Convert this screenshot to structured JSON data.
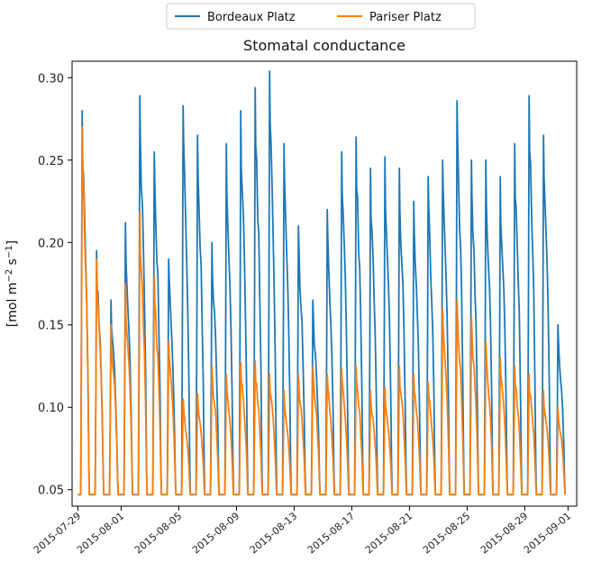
{
  "chart_data": {
    "type": "line",
    "title": "Stomatal conductance",
    "ylabel": "[mol m",
    "ylabel_sup1": "−2",
    "ylabel_mid": " s",
    "ylabel_sup2": "−1",
    "ylabel_end": "]",
    "ylim": [
      0.04,
      0.31
    ],
    "yticks": [
      "0.05",
      "0.10",
      "0.15",
      "0.20",
      "0.25",
      "0.30"
    ],
    "ytick_values": [
      0.05,
      0.1,
      0.15,
      0.2,
      0.25,
      0.3
    ],
    "x_start": "2015-07-29",
    "xticks": [
      "2015-07-29",
      "2015-08-01",
      "2015-08-05",
      "2015-08-09",
      "2015-08-13",
      "2015-08-17",
      "2015-08-21",
      "2015-08-25",
      "2015-08-29",
      "2015-09-01"
    ],
    "xtick_days": [
      0,
      3,
      7,
      11,
      15,
      19,
      23,
      27,
      31,
      34
    ],
    "xlim_days": [
      -0.4,
      34.6
    ],
    "legend_position": "top-center",
    "baseline": 0.047,
    "series": [
      {
        "name": "Bordeaux Platz",
        "color": "#1f77b4",
        "daily_peaks": [
          0.28,
          0.195,
          0.165,
          0.212,
          0.289,
          0.255,
          0.19,
          0.283,
          0.265,
          0.2,
          0.26,
          0.28,
          0.294,
          0.304,
          0.26,
          0.21,
          0.165,
          0.22,
          0.255,
          0.264,
          0.245,
          0.252,
          0.245,
          0.225,
          0.24,
          0.25,
          0.286,
          0.25,
          0.25,
          0.24,
          0.26,
          0.289,
          0.265,
          0.15
        ],
        "daily_troughs": [
          0.047,
          0.047,
          0.047,
          0.047,
          0.047,
          0.047,
          0.047,
          0.047,
          0.047,
          0.047,
          0.047,
          0.047,
          0.047,
          0.047,
          0.047,
          0.047,
          0.047,
          0.047,
          0.047,
          0.047,
          0.047,
          0.047,
          0.047,
          0.047,
          0.047,
          0.047,
          0.047,
          0.047,
          0.047,
          0.047,
          0.047,
          0.047,
          0.047,
          0.047
        ]
      },
      {
        "name": "Pariser Platz",
        "color": "#ff7f0e",
        "daily_peaks": [
          0.27,
          0.19,
          0.15,
          0.175,
          0.218,
          0.18,
          0.14,
          0.105,
          0.108,
          0.125,
          0.12,
          0.127,
          0.128,
          0.12,
          0.11,
          0.12,
          0.125,
          0.12,
          0.123,
          0.125,
          0.11,
          0.112,
          0.125,
          0.12,
          0.115,
          0.16,
          0.165,
          0.155,
          0.14,
          0.13,
          0.125,
          0.12,
          0.11,
          0.1
        ],
        "daily_troughs": [
          0.047,
          0.047,
          0.047,
          0.047,
          0.047,
          0.047,
          0.047,
          0.047,
          0.047,
          0.047,
          0.047,
          0.047,
          0.047,
          0.047,
          0.047,
          0.047,
          0.047,
          0.047,
          0.047,
          0.047,
          0.047,
          0.047,
          0.047,
          0.047,
          0.047,
          0.047,
          0.047,
          0.047,
          0.047,
          0.047,
          0.047,
          0.047,
          0.047,
          0.047
        ]
      }
    ]
  }
}
